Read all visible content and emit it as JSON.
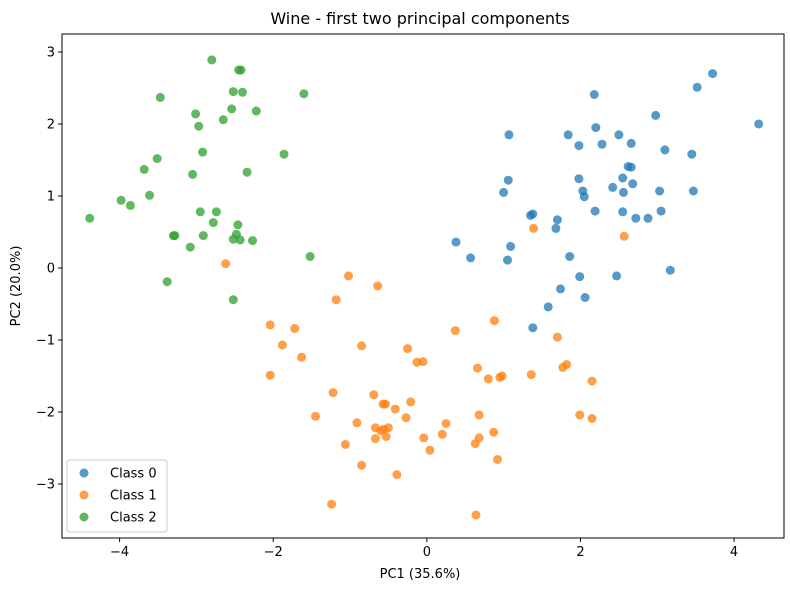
{
  "chart_data": {
    "type": "scatter",
    "title": "Wine - first two principal components",
    "xlabel": "PC1 (35.6%)",
    "ylabel": "PC2 (20.0%)",
    "xlim": [
      -4.75,
      4.65
    ],
    "ylim": [
      -3.75,
      3.25
    ],
    "xticks": [
      -4,
      -2,
      0,
      2,
      4
    ],
    "yticks": [
      -3,
      -2,
      -1,
      0,
      1,
      2,
      3
    ],
    "grid": false,
    "legend": "lower-left",
    "series": [
      {
        "name": "Class 0",
        "color": "#1f77b4",
        "points": [
          [
            3.72,
            2.7
          ],
          [
            3.52,
            2.51
          ],
          [
            4.32,
            2.0
          ],
          [
            2.18,
            2.41
          ],
          [
            2.98,
            2.12
          ],
          [
            2.2,
            1.95
          ],
          [
            1.84,
            1.85
          ],
          [
            2.5,
            1.85
          ],
          [
            2.66,
            1.73
          ],
          [
            2.28,
            1.72
          ],
          [
            1.98,
            1.7
          ],
          [
            3.1,
            1.64
          ],
          [
            3.45,
            1.58
          ],
          [
            2.62,
            1.41
          ],
          [
            2.66,
            1.4
          ],
          [
            1.07,
            1.85
          ],
          [
            1.98,
            1.24
          ],
          [
            2.55,
            1.25
          ],
          [
            1.06,
            1.22
          ],
          [
            2.68,
            1.17
          ],
          [
            2.42,
            1.12
          ],
          [
            2.03,
            1.07
          ],
          [
            2.56,
            1.05
          ],
          [
            3.03,
            1.07
          ],
          [
            3.47,
            1.07
          ],
          [
            1.0,
            1.05
          ],
          [
            2.05,
            0.99
          ],
          [
            2.19,
            0.79
          ],
          [
            3.05,
            0.79
          ],
          [
            2.55,
            0.78
          ],
          [
            1.38,
            0.75
          ],
          [
            1.35,
            0.73
          ],
          [
            2.72,
            0.69
          ],
          [
            2.88,
            0.69
          ],
          [
            1.7,
            0.67
          ],
          [
            1.68,
            0.55
          ],
          [
            0.38,
            0.36
          ],
          [
            1.09,
            0.3
          ],
          [
            0.57,
            0.14
          ],
          [
            1.05,
            0.11
          ],
          [
            1.86,
            0.16
          ],
          [
            3.17,
            -0.03
          ],
          [
            1.99,
            -0.12
          ],
          [
            2.47,
            -0.11
          ],
          [
            1.74,
            -0.29
          ],
          [
            2.06,
            -0.41
          ],
          [
            1.58,
            -0.54
          ],
          [
            1.38,
            -0.83
          ]
        ]
      },
      {
        "name": "Class 1",
        "color": "#ff7f0e",
        "points": [
          [
            1.39,
            0.55
          ],
          [
            2.57,
            0.44
          ],
          [
            -2.62,
            0.06
          ],
          [
            -1.02,
            -0.11
          ],
          [
            -0.64,
            -0.25
          ],
          [
            -1.18,
            -0.44
          ],
          [
            -2.04,
            -0.79
          ],
          [
            -1.72,
            -0.84
          ],
          [
            0.88,
            -0.73
          ],
          [
            0.37,
            -0.87
          ],
          [
            1.7,
            -0.96
          ],
          [
            -1.88,
            -1.07
          ],
          [
            -0.85,
            -1.08
          ],
          [
            -0.25,
            -1.12
          ],
          [
            -1.63,
            -1.24
          ],
          [
            -0.13,
            -1.31
          ],
          [
            -0.05,
            -1.3
          ],
          [
            1.82,
            -1.34
          ],
          [
            1.77,
            -1.38
          ],
          [
            0.66,
            -1.39
          ],
          [
            -2.04,
            -1.49
          ],
          [
            1.36,
            -1.48
          ],
          [
            0.95,
            -1.52
          ],
          [
            0.8,
            -1.54
          ],
          [
            0.98,
            -1.5
          ],
          [
            2.15,
            -1.57
          ],
          [
            -1.22,
            -1.73
          ],
          [
            -0.69,
            -1.76
          ],
          [
            -0.21,
            -1.86
          ],
          [
            -0.54,
            -1.89
          ],
          [
            -0.57,
            -1.89
          ],
          [
            -0.41,
            -1.96
          ],
          [
            -1.45,
            -2.06
          ],
          [
            0.68,
            -2.04
          ],
          [
            1.99,
            -2.04
          ],
          [
            2.15,
            -2.09
          ],
          [
            -0.27,
            -2.08
          ],
          [
            -0.91,
            -2.15
          ],
          [
            0.25,
            -2.16
          ],
          [
            -0.67,
            -2.22
          ],
          [
            -0.56,
            -2.24
          ],
          [
            -0.5,
            -2.22
          ],
          [
            -0.6,
            -2.26
          ],
          [
            0.87,
            -2.28
          ],
          [
            0.2,
            -2.31
          ],
          [
            -0.04,
            -2.36
          ],
          [
            -0.53,
            -2.34
          ],
          [
            -0.67,
            -2.37
          ],
          [
            0.68,
            -2.36
          ],
          [
            -1.06,
            -2.45
          ],
          [
            0.63,
            -2.44
          ],
          [
            0.04,
            -2.53
          ],
          [
            0.92,
            -2.66
          ],
          [
            -0.85,
            -2.74
          ],
          [
            -0.39,
            -2.87
          ],
          [
            -1.24,
            -3.28
          ],
          [
            0.64,
            -3.43
          ]
        ]
      },
      {
        "name": "Class 2",
        "color": "#2ca02c",
        "points": [
          [
            -2.8,
            2.89
          ],
          [
            -2.45,
            2.75
          ],
          [
            -2.42,
            2.75
          ],
          [
            -2.4,
            2.44
          ],
          [
            -2.52,
            2.45
          ],
          [
            -1.6,
            2.42
          ],
          [
            -3.47,
            2.37
          ],
          [
            -2.54,
            2.21
          ],
          [
            -2.22,
            2.18
          ],
          [
            -3.01,
            2.14
          ],
          [
            -2.65,
            2.06
          ],
          [
            -2.97,
            1.97
          ],
          [
            -2.92,
            1.61
          ],
          [
            -1.86,
            1.58
          ],
          [
            -3.51,
            1.52
          ],
          [
            -3.68,
            1.37
          ],
          [
            -2.34,
            1.33
          ],
          [
            -3.05,
            1.3
          ],
          [
            -3.61,
            1.01
          ],
          [
            -3.98,
            0.94
          ],
          [
            -3.86,
            0.87
          ],
          [
            -2.95,
            0.78
          ],
          [
            -2.74,
            0.78
          ],
          [
            -4.39,
            0.69
          ],
          [
            -2.78,
            0.63
          ],
          [
            -2.46,
            0.6
          ],
          [
            -3.3,
            0.45
          ],
          [
            -3.28,
            0.45
          ],
          [
            -2.91,
            0.45
          ],
          [
            -2.48,
            0.47
          ],
          [
            -2.52,
            0.4
          ],
          [
            -2.43,
            0.39
          ],
          [
            -2.27,
            0.38
          ],
          [
            -3.08,
            0.29
          ],
          [
            -1.52,
            0.16
          ],
          [
            -3.38,
            -0.19
          ],
          [
            -2.52,
            -0.44
          ]
        ]
      }
    ]
  }
}
